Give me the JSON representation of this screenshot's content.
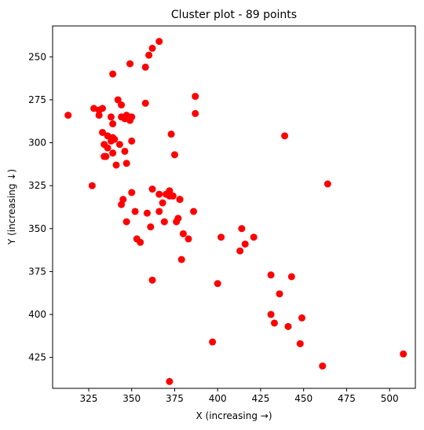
{
  "chart_data": {
    "type": "scatter",
    "title": "Cluster plot - 89 points",
    "xlabel": "X (increasing →)",
    "ylabel": "Y (increasing ↓)",
    "xlim": [
      304,
      515
    ],
    "ylim": [
      443,
      232
    ],
    "y_inverted": true,
    "x_ticks": [
      325,
      350,
      375,
      400,
      425,
      450,
      475,
      500
    ],
    "y_ticks": [
      250,
      275,
      300,
      325,
      350,
      375,
      400,
      425
    ],
    "grid": false,
    "marker_color": "#ff0000",
    "points": [
      {
        "x": 366,
        "y": 241
      },
      {
        "x": 362,
        "y": 245
      },
      {
        "x": 360,
        "y": 249
      },
      {
        "x": 349,
        "y": 254
      },
      {
        "x": 358,
        "y": 256
      },
      {
        "x": 339,
        "y": 260
      },
      {
        "x": 387,
        "y": 273
      },
      {
        "x": 342,
        "y": 275
      },
      {
        "x": 358,
        "y": 277
      },
      {
        "x": 344,
        "y": 278
      },
      {
        "x": 328,
        "y": 280
      },
      {
        "x": 333,
        "y": 280
      },
      {
        "x": 331,
        "y": 281
      },
      {
        "x": 387,
        "y": 283
      },
      {
        "x": 313,
        "y": 284
      },
      {
        "x": 331,
        "y": 284
      },
      {
        "x": 347,
        "y": 284
      },
      {
        "x": 344,
        "y": 285
      },
      {
        "x": 350,
        "y": 285
      },
      {
        "x": 338,
        "y": 285
      },
      {
        "x": 346,
        "y": 286
      },
      {
        "x": 349,
        "y": 287
      },
      {
        "x": 339,
        "y": 289
      },
      {
        "x": 333,
        "y": 294
      },
      {
        "x": 373,
        "y": 295
      },
      {
        "x": 439,
        "y": 296
      },
      {
        "x": 336,
        "y": 296
      },
      {
        "x": 339,
        "y": 297
      },
      {
        "x": 340,
        "y": 298
      },
      {
        "x": 338,
        "y": 299
      },
      {
        "x": 350,
        "y": 299
      },
      {
        "x": 334,
        "y": 301
      },
      {
        "x": 343,
        "y": 301
      },
      {
        "x": 336,
        "y": 303
      },
      {
        "x": 346,
        "y": 305
      },
      {
        "x": 339,
        "y": 306
      },
      {
        "x": 375,
        "y": 307
      },
      {
        "x": 334,
        "y": 308
      },
      {
        "x": 335,
        "y": 308
      },
      {
        "x": 347,
        "y": 312
      },
      {
        "x": 341,
        "y": 313
      },
      {
        "x": 464,
        "y": 324
      },
      {
        "x": 327,
        "y": 325
      },
      {
        "x": 362,
        "y": 327
      },
      {
        "x": 372,
        "y": 328
      },
      {
        "x": 350,
        "y": 329
      },
      {
        "x": 366,
        "y": 330
      },
      {
        "x": 370,
        "y": 330
      },
      {
        "x": 372,
        "y": 331
      },
      {
        "x": 374,
        "y": 331
      },
      {
        "x": 345,
        "y": 333
      },
      {
        "x": 378,
        "y": 333
      },
      {
        "x": 368,
        "y": 335
      },
      {
        "x": 344,
        "y": 336
      },
      {
        "x": 352,
        "y": 340
      },
      {
        "x": 366,
        "y": 340
      },
      {
        "x": 386,
        "y": 340
      },
      {
        "x": 359,
        "y": 341
      },
      {
        "x": 377,
        "y": 344
      },
      {
        "x": 347,
        "y": 346
      },
      {
        "x": 369,
        "y": 346
      },
      {
        "x": 376,
        "y": 346
      },
      {
        "x": 361,
        "y": 349
      },
      {
        "x": 414,
        "y": 350
      },
      {
        "x": 380,
        "y": 353
      },
      {
        "x": 402,
        "y": 355
      },
      {
        "x": 421,
        "y": 355
      },
      {
        "x": 383,
        "y": 356
      },
      {
        "x": 353,
        "y": 356
      },
      {
        "x": 355,
        "y": 358
      },
      {
        "x": 416,
        "y": 359
      },
      {
        "x": 413,
        "y": 363
      },
      {
        "x": 379,
        "y": 368
      },
      {
        "x": 431,
        "y": 377
      },
      {
        "x": 443,
        "y": 378
      },
      {
        "x": 362,
        "y": 380
      },
      {
        "x": 400,
        "y": 382
      },
      {
        "x": 436,
        "y": 388
      },
      {
        "x": 431,
        "y": 400
      },
      {
        "x": 449,
        "y": 402
      },
      {
        "x": 433,
        "y": 405
      },
      {
        "x": 441,
        "y": 407
      },
      {
        "x": 397,
        "y": 416
      },
      {
        "x": 448,
        "y": 417
      },
      {
        "x": 508,
        "y": 423
      },
      {
        "x": 461,
        "y": 430
      },
      {
        "x": 372,
        "y": 439
      },
      {
        "x": 374,
        "y": 331
      },
      {
        "x": 378,
        "y": 333
      }
    ]
  }
}
